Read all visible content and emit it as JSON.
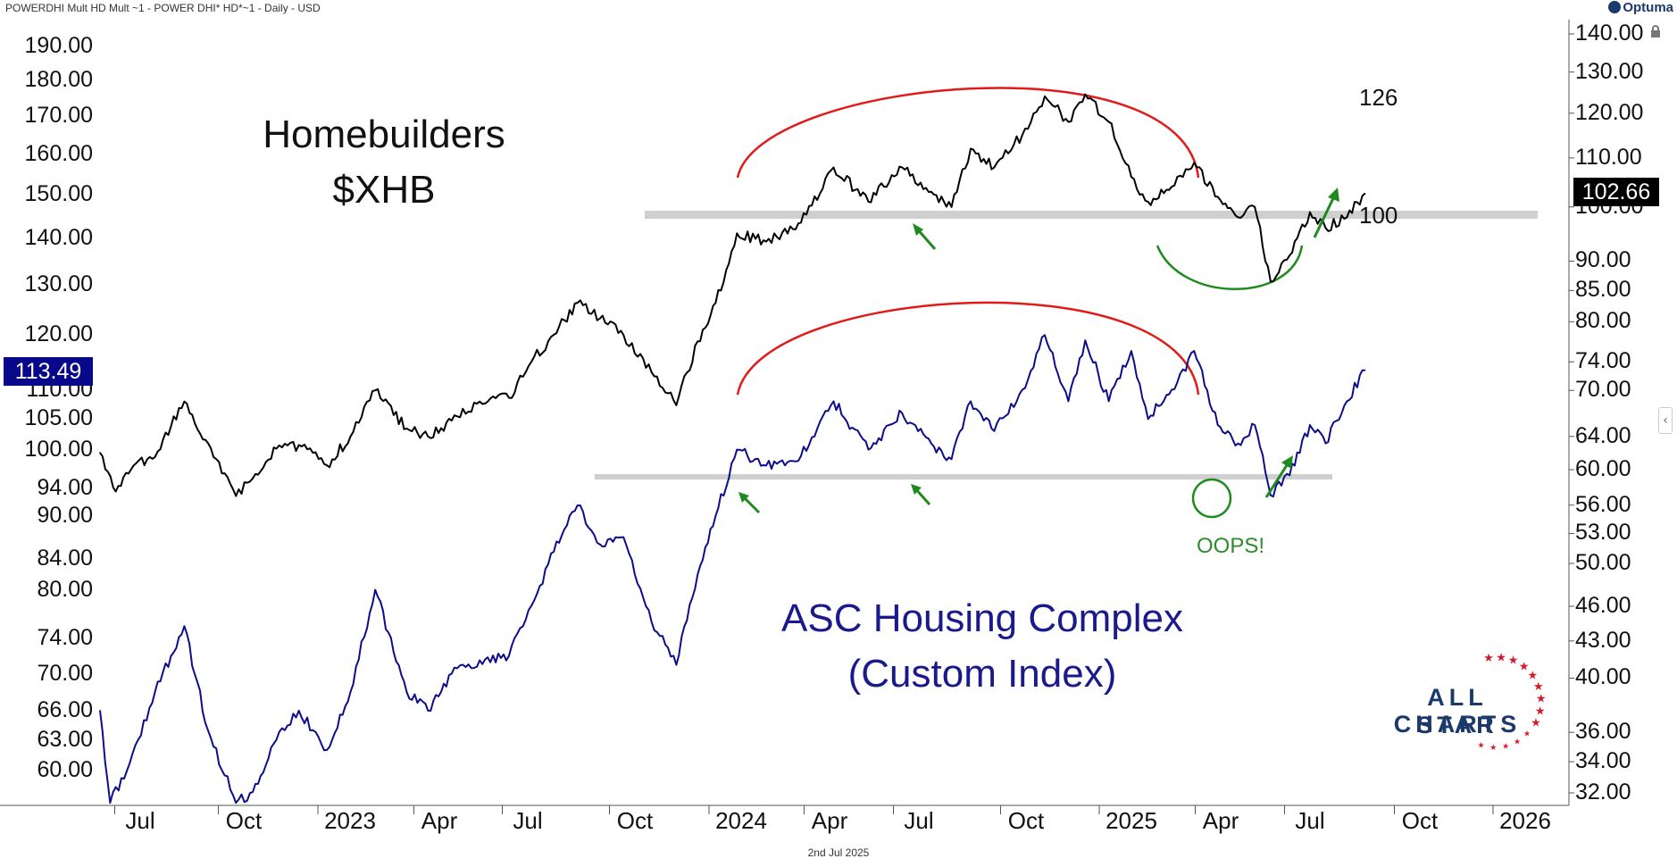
{
  "header": {
    "title": "POWERDHI Mult HD Mult ~1 - POWER DHI* HD*~1 - Daily - USD"
  },
  "brand": {
    "logo_text": "Optuma"
  },
  "footer": {
    "date_label": "2nd Jul 2025"
  },
  "annotations": {
    "xhb_title_line1": "Homebuilders",
    "xhb_title_line2": "$XHB",
    "asc_title_line1": "ASC Housing Complex",
    "asc_title_line2": "(Custom Index)",
    "oops": "OOPS!",
    "level_126": "126",
    "level_100": "100"
  },
  "price_labels": {
    "left": "113.49",
    "right": "102.66"
  },
  "watermark": {
    "line1": "ALL STAR",
    "line2": "CHARTS"
  },
  "colors": {
    "xhb": "#000000",
    "asc": "#0d0d8c",
    "arc_red": "#e11a1a",
    "arc_green": "#1f8a1f",
    "support_gray": "#cfcfcf",
    "arrow_green": "#1f8a1f",
    "star_red": "#d7182a",
    "brand_blue": "#1b3a6b"
  },
  "chart_data": {
    "type": "line",
    "x_ticks": [
      "Jul",
      "Oct",
      "2023",
      "Apr",
      "Jul",
      "Oct",
      "2024",
      "Apr",
      "Jul",
      "Oct",
      "2025",
      "Apr",
      "Jul",
      "Oct",
      "2026"
    ],
    "left_axis": {
      "scale": "log",
      "ticks": [
        "190.00",
        "180.00",
        "170.00",
        "160.00",
        "150.00",
        "140.00",
        "130.00",
        "120.00",
        "110.00",
        "105.00",
        "100.00",
        "94.00",
        "90.00",
        "84.00",
        "80.00",
        "74.00",
        "70.00",
        "66.00",
        "63.00",
        "60.00"
      ]
    },
    "right_axis": {
      "scale": "log",
      "ticks": [
        "140.00",
        "130.00",
        "120.00",
        "110.00",
        "100.00",
        "90.00",
        "85.00",
        "80.00",
        "74.00",
        "70.00",
        "64.00",
        "60.00",
        "56.00",
        "53.00",
        "50.00",
        "46.00",
        "43.00",
        "40.00",
        "36.00",
        "34.00",
        "32.00"
      ]
    },
    "series": [
      {
        "name": "$XHB",
        "axis": "right",
        "last": 102.66,
        "points": [
          [
            "2022-06-01",
            62.0
          ],
          [
            "2022-06-15",
            57.5
          ],
          [
            "2022-07-01",
            60.5
          ],
          [
            "2022-07-20",
            61.5
          ],
          [
            "2022-08-15",
            68.5
          ],
          [
            "2022-09-10",
            61.5
          ],
          [
            "2022-09-30",
            57.0
          ],
          [
            "2022-10-15",
            59.0
          ],
          [
            "2022-11-05",
            62.5
          ],
          [
            "2022-11-30",
            63.0
          ],
          [
            "2022-12-20",
            60.5
          ],
          [
            "2023-01-10",
            64.0
          ],
          [
            "2023-02-01",
            70.0
          ],
          [
            "2023-03-01",
            65.0
          ],
          [
            "2023-03-20",
            64.0
          ],
          [
            "2023-04-10",
            66.0
          ],
          [
            "2023-05-05",
            68.5
          ],
          [
            "2023-05-31",
            69.0
          ],
          [
            "2023-06-20",
            74.0
          ],
          [
            "2023-07-10",
            78.0
          ],
          [
            "2023-07-31",
            83.0
          ],
          [
            "2023-08-20",
            80.5
          ],
          [
            "2023-09-10",
            78.0
          ],
          [
            "2023-10-05",
            72.5
          ],
          [
            "2023-10-27",
            68.0
          ],
          [
            "2023-11-15",
            77.0
          ],
          [
            "2023-12-01",
            83.0
          ],
          [
            "2023-12-20",
            95.0
          ],
          [
            "2024-01-15",
            93.5
          ],
          [
            "2024-02-15",
            97.0
          ],
          [
            "2024-03-15",
            108.0
          ],
          [
            "2024-04-15",
            101.0
          ],
          [
            "2024-05-15",
            108.0
          ],
          [
            "2024-06-10",
            103.0
          ],
          [
            "2024-06-28",
            100.0
          ],
          [
            "2024-07-15",
            112.0
          ],
          [
            "2024-08-05",
            108.0
          ],
          [
            "2024-08-30",
            115.0
          ],
          [
            "2024-09-19",
            124.0
          ],
          [
            "2024-10-10",
            118.0
          ],
          [
            "2024-10-25",
            124.5
          ],
          [
            "2024-11-15",
            118.0
          ],
          [
            "2024-12-05",
            106.0
          ],
          [
            "2024-12-20",
            101.0
          ],
          [
            "2025-01-10",
            104.0
          ],
          [
            "2025-01-30",
            109.0
          ],
          [
            "2025-02-20",
            102.0
          ],
          [
            "2025-03-10",
            98.0
          ],
          [
            "2025-03-25",
            100.0
          ],
          [
            "2025-04-08",
            86.5
          ],
          [
            "2025-04-25",
            91.0
          ],
          [
            "2025-05-13",
            99.0
          ],
          [
            "2025-05-27",
            96.0
          ],
          [
            "2025-06-15",
            98.0
          ],
          [
            "2025-07-01",
            102.66
          ]
        ]
      },
      {
        "name": "ASC Housing Complex (Custom Index)",
        "axis": "left",
        "last": 113.49,
        "points": [
          [
            "2022-06-01",
            66.0
          ],
          [
            "2022-06-10",
            57.0
          ],
          [
            "2022-06-25",
            60.0
          ],
          [
            "2022-07-20",
            68.0
          ],
          [
            "2022-08-15",
            75.5
          ],
          [
            "2022-09-05",
            64.0
          ],
          [
            "2022-09-30",
            57.0
          ],
          [
            "2022-10-15",
            58.0
          ],
          [
            "2022-11-05",
            63.0
          ],
          [
            "2022-11-25",
            66.0
          ],
          [
            "2022-12-20",
            62.0
          ],
          [
            "2023-01-10",
            68.0
          ],
          [
            "2023-02-01",
            80.0
          ],
          [
            "2023-03-01",
            68.0
          ],
          [
            "2023-03-20",
            66.0
          ],
          [
            "2023-04-10",
            70.0
          ],
          [
            "2023-05-05",
            71.5
          ],
          [
            "2023-05-31",
            72.0
          ],
          [
            "2023-06-20",
            78.0
          ],
          [
            "2023-07-10",
            85.0
          ],
          [
            "2023-07-31",
            91.5
          ],
          [
            "2023-08-20",
            86.0
          ],
          [
            "2023-09-10",
            87.0
          ],
          [
            "2023-10-05",
            76.0
          ],
          [
            "2023-10-27",
            71.0
          ],
          [
            "2023-11-15",
            82.0
          ],
          [
            "2023-12-01",
            90.0
          ],
          [
            "2023-12-20",
            100.0
          ],
          [
            "2024-01-15",
            97.5
          ],
          [
            "2024-02-15",
            99.0
          ],
          [
            "2024-03-15",
            108.0
          ],
          [
            "2024-04-15",
            100.0
          ],
          [
            "2024-05-15",
            106.0
          ],
          [
            "2024-06-10",
            101.0
          ],
          [
            "2024-06-28",
            98.5
          ],
          [
            "2024-07-15",
            108.0
          ],
          [
            "2024-08-05",
            103.0
          ],
          [
            "2024-08-30",
            110.0
          ],
          [
            "2024-09-19",
            120.0
          ],
          [
            "2024-10-10",
            108.0
          ],
          [
            "2024-10-25",
            119.0
          ],
          [
            "2024-11-15",
            108.0
          ],
          [
            "2024-12-05",
            117.0
          ],
          [
            "2024-12-20",
            105.0
          ],
          [
            "2025-01-10",
            110.0
          ],
          [
            "2025-01-30",
            117.0
          ],
          [
            "2025-02-20",
            104.0
          ],
          [
            "2025-03-10",
            101.0
          ],
          [
            "2025-03-25",
            104.0
          ],
          [
            "2025-04-08",
            93.0
          ],
          [
            "2025-04-25",
            96.0
          ],
          [
            "2025-05-13",
            104.0
          ],
          [
            "2025-05-27",
            101.0
          ],
          [
            "2025-06-15",
            108.0
          ],
          [
            "2025-07-01",
            113.49
          ]
        ]
      }
    ]
  }
}
